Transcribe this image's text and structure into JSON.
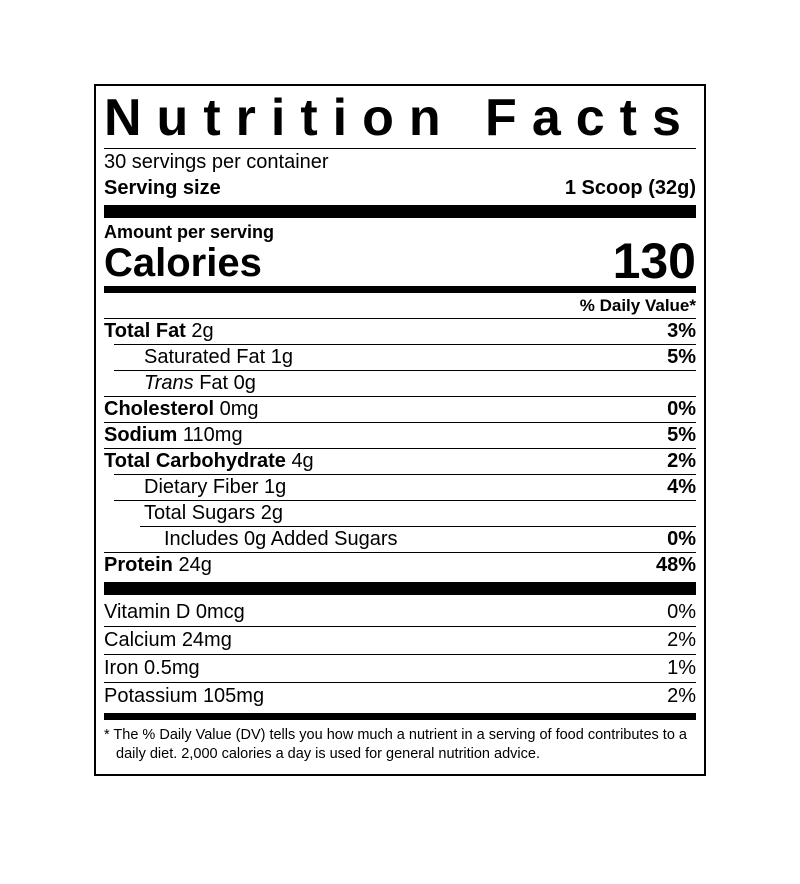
{
  "colors": {
    "text": "#000000",
    "background": "#ffffff"
  },
  "label": {
    "title": "Nutrition Facts",
    "servings_per_container": "30 servings per container",
    "serving_size": {
      "label": "Serving size",
      "value": "1 Scoop (32g)"
    },
    "amount_per_serving": "Amount per serving",
    "calories": {
      "label": "Calories",
      "value": "130"
    },
    "daily_value_header": "% Daily Value*",
    "rows": [
      {
        "name": "Total Fat",
        "amount": "2g",
        "dv": "3%"
      },
      {
        "name": "Saturated Fat",
        "amount": "1g",
        "dv": "5%"
      },
      {
        "name_italic": "Trans",
        "name": "Fat",
        "amount": "0g",
        "dv": ""
      },
      {
        "name": "Cholesterol",
        "amount": "0mg",
        "dv": "0%"
      },
      {
        "name": "Sodium",
        "amount": "110mg",
        "dv": "5%"
      },
      {
        "name": "Total Carbohydrate",
        "amount": "4g",
        "dv": "2%"
      },
      {
        "name": "Dietary Fiber",
        "amount": "1g",
        "dv": "4%"
      },
      {
        "name": "Total Sugars",
        "amount": "2g",
        "dv": ""
      },
      {
        "name": "Includes 0g Added Sugars",
        "amount": "",
        "dv": "0%"
      },
      {
        "name": "Protein",
        "amount": "24g",
        "dv": "48%"
      }
    ],
    "vitamins": [
      {
        "name": "Vitamin D",
        "amount": "0mcg",
        "dv": "0%"
      },
      {
        "name": "Calcium",
        "amount": "24mg",
        "dv": "2%"
      },
      {
        "name": "Iron",
        "amount": "0.5mg",
        "dv": "1%"
      },
      {
        "name": "Potassium",
        "amount": "105mg",
        "dv": "2%"
      }
    ],
    "footnote": "* The % Daily Value (DV) tells you how much a nutrient in a serving of food contributes to a daily diet. 2,000 calories a day is used for general nutrition advice."
  }
}
